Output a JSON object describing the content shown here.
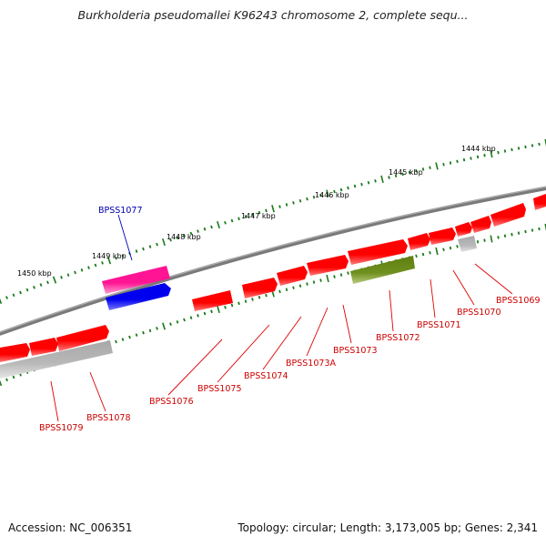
{
  "title": "Burkholderia pseudomallei K96243 chromosome 2, complete sequ...",
  "footer": {
    "accession": "Accession: NC_006351",
    "info": "Topology: circular; Length: 3,173,005 bp; Genes: 2,341"
  },
  "colors": {
    "backbone": "#8a8a8a",
    "tick": "#1a7a1a",
    "gene_red": "#ff0000",
    "gene_olive": "#6f8f1e",
    "gene_gray": "#b4b4b4",
    "gene_pink": "#ff1493",
    "gene_blue": "#0000ee",
    "label_red": "#cc0000",
    "label_blue": "#0000aa"
  },
  "kbp_labels": [
    "1444 kbp",
    "1445 kbp",
    "1446 kbp",
    "1447 kbp",
    "1448 kbp",
    "1449 kbp",
    "1450 kbp"
  ],
  "gene_labels": [
    "BPSS1069",
    "BPSS1070",
    "BPSS1071",
    "BPSS1072",
    "BPSS1073",
    "BPSS1073A",
    "BPSS1074",
    "BPSS1075",
    "BPSS1076",
    "BPSS1078",
    "BPSS1079",
    "BPSS1077"
  ]
}
